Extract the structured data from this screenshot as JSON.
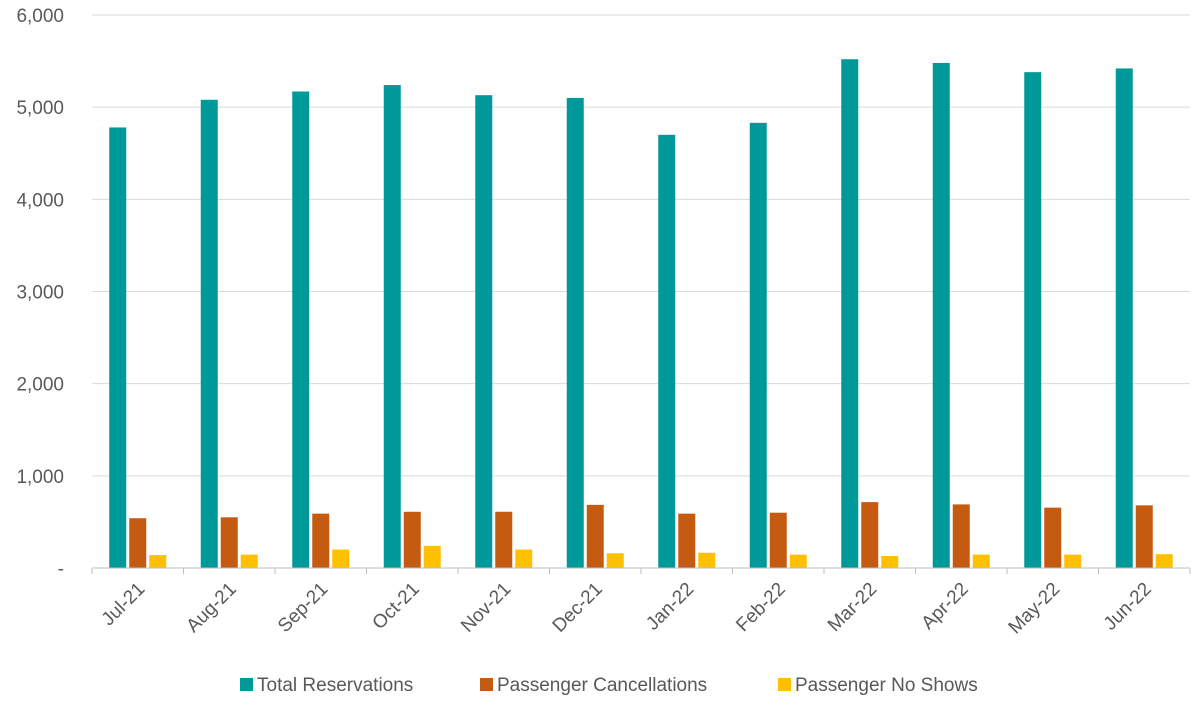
{
  "chart_data": {
    "type": "bar",
    "title": "",
    "xlabel": "",
    "ylabel": "",
    "ylim": [
      0,
      6000
    ],
    "yticks": [
      0,
      1000,
      2000,
      3000,
      4000,
      5000,
      6000
    ],
    "ytick_labels": [
      "-",
      "1,000",
      "2,000",
      "3,000",
      "4,000",
      "5,000",
      "6,000"
    ],
    "grid": "horizontal",
    "legend_position": "bottom",
    "categories": [
      "Jul-21",
      "Aug-21",
      "Sep-21",
      "Oct-21",
      "Nov-21",
      "Dec-21",
      "Jan-22",
      "Feb-22",
      "Mar-22",
      "Apr-22",
      "May-22",
      "Jun-22"
    ],
    "series": [
      {
        "name": "Total Reservations",
        "color": "#009999",
        "values": [
          4780,
          5080,
          5170,
          5240,
          5130,
          5100,
          4700,
          4830,
          5520,
          5480,
          5380,
          5420
        ]
      },
      {
        "name": "Passenger Cancellations",
        "color": "#C55A11",
        "values": [
          540,
          550,
          590,
          610,
          610,
          685,
          590,
          600,
          715,
          690,
          655,
          680
        ]
      },
      {
        "name": "Passenger No Shows",
        "color": "#FFC000",
        "values": [
          140,
          145,
          200,
          240,
          200,
          160,
          165,
          145,
          130,
          145,
          145,
          150
        ]
      }
    ]
  }
}
